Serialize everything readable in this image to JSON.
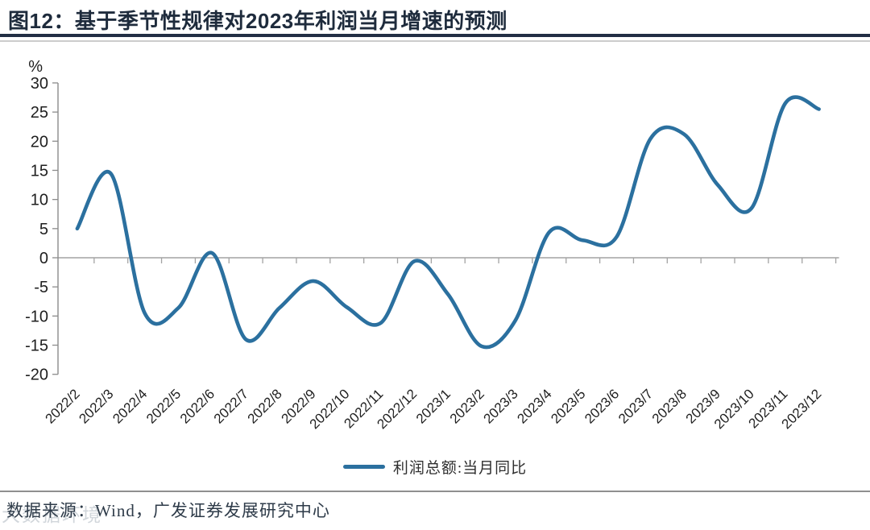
{
  "header": {
    "title": "图12：基于季节性规律对2023年利润当月增速的预测"
  },
  "chart_data": {
    "type": "line",
    "title": "基于季节性规律对2023年利润当月增速的预测",
    "unit_label": "%",
    "categories": [
      "2022/2",
      "2022/3",
      "2022/4",
      "2022/5",
      "2022/6",
      "2022/7",
      "2022/8",
      "2022/9",
      "2022/10",
      "2022/11",
      "2022/12",
      "2023/1",
      "2023/2",
      "2023/3",
      "2023/4",
      "2023/5",
      "2023/6",
      "2023/7",
      "2023/8",
      "2023/9",
      "2023/10",
      "2023/11",
      "2023/12"
    ],
    "series": [
      {
        "name": "利润总额:当月同比",
        "color": "#2b709f",
        "values": [
          5.0,
          14.4,
          -9.5,
          -8.6,
          0.8,
          -14.0,
          -8.6,
          -4.0,
          -8.5,
          -11.2,
          -0.6,
          -6.3,
          -15.2,
          -10.7,
          4.4,
          3.0,
          3.6,
          20.4,
          21.2,
          12.5,
          8.5,
          26.5,
          25.5
        ]
      }
    ],
    "ylim": [
      -20,
      30
    ],
    "yticks": [
      30,
      25,
      20,
      15,
      10,
      5,
      0,
      -5,
      -10,
      -15,
      -20
    ],
    "xlabel": "",
    "ylabel": "%",
    "grid": "zero-baseline-only",
    "legend_position": "bottom-center",
    "x_label_rotation_deg": -45
  },
  "legend": {
    "label": "利润总额:当月同比"
  },
  "footer": {
    "source": "数据来源：Wind，广发证券发展研究中心",
    "watermark": "大数据环境"
  },
  "colors": {
    "accent_line": "#2b709f",
    "title_text": "#1e2b3c",
    "title_rule": "#222e44",
    "axis_gray": "#8c8c8c",
    "tick_gray": "#a3a3a3",
    "label_text": "#1f1f1f"
  }
}
